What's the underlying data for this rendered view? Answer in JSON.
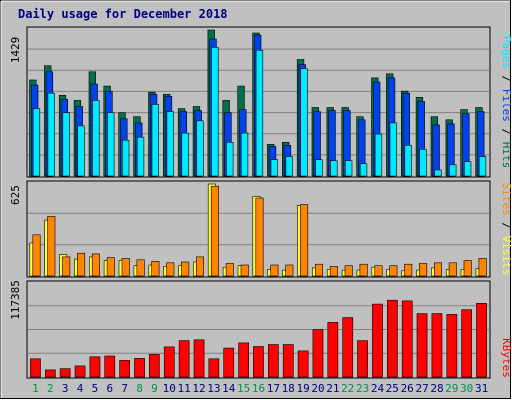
{
  "chart_data": {
    "type": "bar",
    "title": "Daily usage for December 2018",
    "categories": [
      "1",
      "2",
      "3",
      "4",
      "5",
      "6",
      "7",
      "8",
      "9",
      "10",
      "11",
      "12",
      "13",
      "14",
      "15",
      "16",
      "17",
      "18",
      "19",
      "20",
      "21",
      "22",
      "23",
      "24",
      "25",
      "26",
      "27",
      "28",
      "29",
      "30",
      "31"
    ],
    "weekend_days": [
      "1",
      "2",
      "8",
      "9",
      "15",
      "16",
      "22",
      "23",
      "29",
      "30"
    ],
    "colors": {
      "hits": "#006f4b",
      "files": "#0042ec",
      "pages": "#00eaff",
      "visits": "#ffff33",
      "sites": "#ff8500",
      "kbytes": "#ff0000",
      "title": "#00007f",
      "weekend_label": "#00934a",
      "weekday_label": "#00007f",
      "background": "#c0c0c0",
      "grid": "#808080"
    },
    "panels": [
      {
        "id": "hits_files_pages",
        "ymax_label": "1429",
        "ylim": [
          0,
          1429
        ],
        "legend": [
          {
            "text": "Pages",
            "color": "#00eaff"
          },
          {
            "text": " / ",
            "color": "#000000"
          },
          {
            "text": "Files",
            "color": "#0042ec"
          },
          {
            "text": " / ",
            "color": "#000000"
          },
          {
            "text": "Hits",
            "color": "#006f4b"
          }
        ],
        "series": [
          {
            "name": "Hits",
            "values": [
              940,
              1080,
              790,
              740,
              1020,
              880,
              620,
              580,
              820,
              800,
              660,
              680,
              1429,
              740,
              880,
              1400,
              310,
              330,
              1140,
              670,
              670,
              670,
              580,
              960,
              1000,
              830,
              770,
              580,
              550,
              650,
              670
            ],
            "color": "#006f4b"
          },
          {
            "name": "Files",
            "values": [
              890,
              1020,
              750,
              680,
              900,
              830,
              560,
              520,
              800,
              780,
              630,
              640,
              1340,
              620,
              650,
              1380,
              290,
              300,
              1090,
              630,
              640,
              640,
              550,
              920,
              960,
              810,
              730,
              500,
              510,
              610,
              630
            ],
            "color": "#0042ec"
          },
          {
            "name": "Pages",
            "values": [
              660,
              810,
              620,
              490,
              740,
              620,
              350,
              380,
              700,
              630,
              420,
              540,
              1260,
              330,
              420,
              1230,
              160,
              190,
              1050,
              160,
              150,
              150,
              120,
              410,
              520,
              300,
              260,
              60,
              110,
              140,
              190
            ],
            "color": "#00eaff"
          }
        ]
      },
      {
        "id": "visits_sites",
        "ymax_label": "625",
        "ylim": [
          0,
          625
        ],
        "legend": [
          {
            "text": "Sites",
            "color": "#ff8500"
          },
          {
            "text": " / ",
            "color": "#000000"
          },
          {
            "text": "Visits",
            "color": "#ffff33"
          }
        ],
        "series": [
          {
            "name": "Visits",
            "values": [
              225,
              380,
              145,
              115,
              130,
              105,
              105,
              70,
              75,
              65,
              70,
              95,
              625,
              60,
              70,
              540,
              45,
              40,
              480,
              55,
              45,
              40,
              40,
              60,
              45,
              35,
              40,
              55,
              45,
              45,
              50
            ],
            "color": "#ffff33"
          },
          {
            "name": "Sites",
            "values": [
              280,
              405,
              130,
              155,
              150,
              125,
              120,
              110,
              100,
              90,
              95,
              130,
              610,
              85,
              75,
              530,
              75,
              75,
              485,
              80,
              65,
              70,
              80,
              70,
              70,
              80,
              85,
              90,
              90,
              105,
              120
            ],
            "color": "#ff8500"
          }
        ]
      },
      {
        "id": "kbytes",
        "ymax_label": "117385",
        "ylim": [
          0,
          117385
        ],
        "legend": [
          {
            "text": "KBytes",
            "color": "#ff0000"
          }
        ],
        "series": [
          {
            "name": "KBytes",
            "values": [
              23000,
              9000,
              10500,
              14000,
              25500,
              26500,
              21000,
              23500,
              28500,
              38000,
              46000,
              47000,
              23000,
              36500,
              43000,
              38500,
              41000,
              41000,
              33000,
              60000,
              69000,
              75000,
              46000,
              92000,
              97000,
              96000,
              80000,
              80000,
              79000,
              85000,
              93000
            ],
            "color": "#ff0000"
          }
        ]
      }
    ]
  }
}
